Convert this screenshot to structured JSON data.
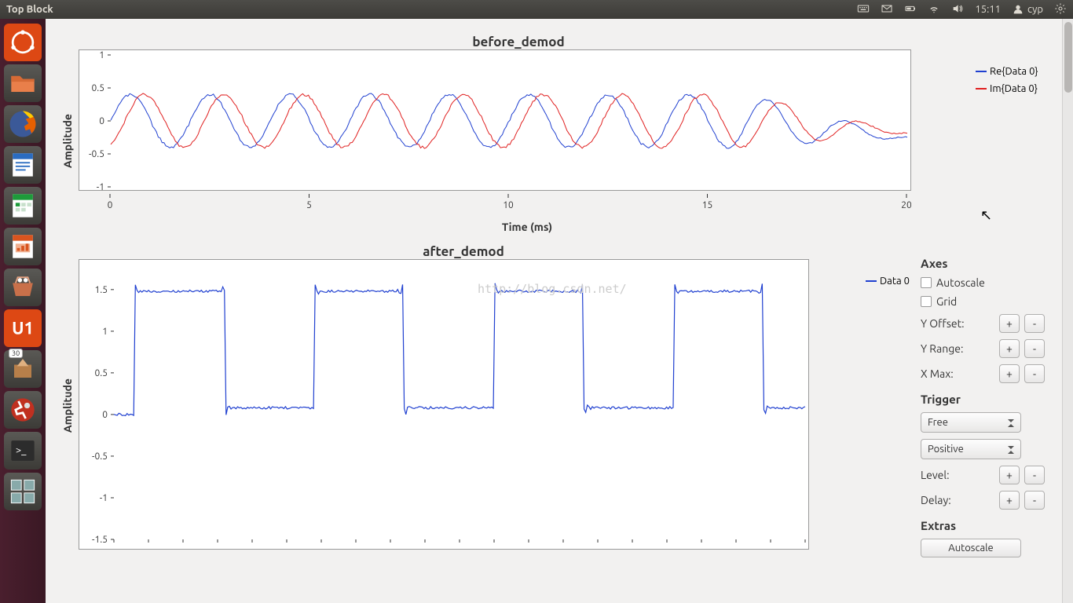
{
  "window_title": "Top Block",
  "time": "15:11",
  "username": "cyp",
  "watermark": "http://blog.csdn.net/",
  "launcher_badge": "30",
  "chart1": {
    "title": "before_demod",
    "ylabel": "Amplitude",
    "xlabel": "Time (ms)",
    "xlim": [
      0,
      20
    ],
    "xtick_step": 5,
    "ylim": [
      -1,
      1
    ],
    "ytick_step": 0.5,
    "background_color": "#ffffff",
    "series": [
      {
        "name": "Re{Data 0}",
        "color": "#2040d0"
      },
      {
        "name": "Im{Data 0}",
        "color": "#e02020"
      }
    ],
    "legend_position": "right",
    "wave": {
      "freq_hz": 500,
      "amp": 0.4,
      "phase_offset_im": -1.1,
      "noise": 0.04,
      "decay_start_ms": 16,
      "decay_end_amp_re": -0.25,
      "decay_end_amp_im": -0.18,
      "samples": 420
    }
  },
  "chart2": {
    "title": "after_demod",
    "ylabel": "Amplitude",
    "xlim": [
      0,
      20
    ],
    "ylim": [
      -1.5,
      1.8
    ],
    "yticks": [
      -1.5,
      -1,
      -0.5,
      0,
      0.5,
      1,
      1.5
    ],
    "background_color": "#ffffff",
    "series": [
      {
        "name": "Data 0",
        "color": "#2040d0"
      }
    ],
    "legend_position": "right",
    "square": {
      "high": 1.48,
      "low": 0.08,
      "period_ms": 5.2,
      "duty": 0.5,
      "start_ms": 0.6,
      "overshoot": 0.15,
      "noise": 0.03,
      "samples": 420
    }
  },
  "controls": {
    "axes_title": "Axes",
    "autoscale_label": "Autoscale",
    "grid_label": "Grid",
    "yoffset_label": "Y Offset:",
    "yrange_label": "Y Range:",
    "xmax_label": "X Max:",
    "trigger_title": "Trigger",
    "trigger_mode": "Free",
    "trigger_slope": "Positive",
    "level_label": "Level:",
    "delay_label": "Delay:",
    "extras_title": "Extras",
    "autoscale_btn": "Autoscale",
    "plus": "+",
    "minus": "-"
  }
}
